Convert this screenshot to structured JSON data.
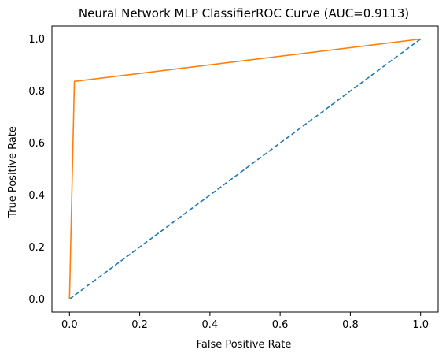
{
  "chart_data": {
    "type": "line",
    "title": "Neural Network MLP ClassifierROC Curve (AUC=0.9113)",
    "xlabel": "False Positive Rate",
    "ylabel": "True Positive Rate",
    "xlim": [
      -0.05,
      1.05
    ],
    "ylim": [
      -0.05,
      1.05
    ],
    "xticks": [
      0.0,
      0.2,
      0.4,
      0.6,
      0.8,
      1.0
    ],
    "yticks": [
      0.0,
      0.2,
      0.4,
      0.6,
      0.8,
      1.0
    ],
    "xtick_labels": [
      "0.0",
      "0.2",
      "0.4",
      "0.6",
      "0.8",
      "1.0"
    ],
    "ytick_labels": [
      "0.0",
      "0.2",
      "0.4",
      "0.6",
      "0.8",
      "1.0"
    ],
    "grid": false,
    "series": [
      {
        "style": "dashed",
        "color": "#1f77b4",
        "x": [
          0.0,
          1.0
        ],
        "y": [
          0.0,
          1.0
        ]
      },
      {
        "style": "solid",
        "color": "#ff7f0e",
        "x": [
          0.0,
          0.014,
          1.0
        ],
        "y": [
          0.0,
          0.837,
          1.0
        ]
      }
    ]
  }
}
